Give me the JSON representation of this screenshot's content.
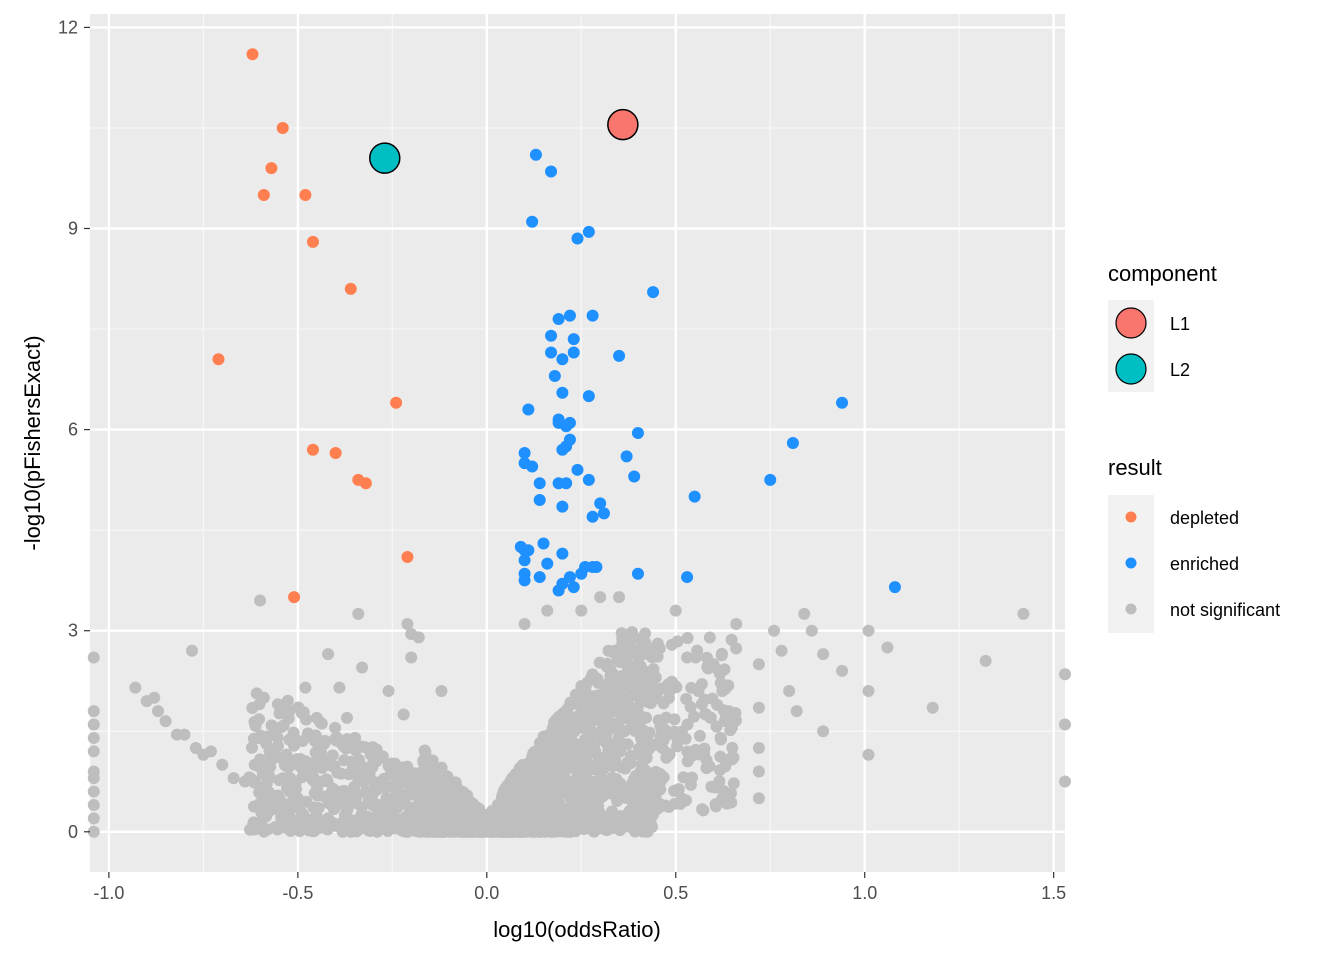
{
  "chart_data": {
    "type": "scatter",
    "xlabel": "log10(oddsRatio)",
    "ylabel": "-log10(pFishersExact)",
    "xlim": [
      -1.05,
      1.53
    ],
    "ylim": [
      -0.6,
      12.2
    ],
    "x_ticks": [
      -1.0,
      -0.5,
      0.0,
      0.5,
      1.0,
      1.5
    ],
    "x_tick_labels": [
      "-1.0",
      "-0.5",
      "0.0",
      "0.5",
      "1.0",
      "1.5"
    ],
    "y_ticks": [
      0,
      3,
      6,
      9,
      12
    ],
    "y_tick_labels": [
      "0",
      "3",
      "6",
      "9",
      "12"
    ],
    "grid": true,
    "legend_position": "right",
    "legend": {
      "component": {
        "title": "component",
        "items": [
          {
            "label": "L1",
            "color": "#F8766D"
          },
          {
            "label": "L2",
            "color": "#00BFC4"
          }
        ]
      },
      "result": {
        "title": "result",
        "items": [
          {
            "label": "depleted",
            "color": "#FF7F50"
          },
          {
            "label": "enriched",
            "color": "#1E90FF"
          },
          {
            "label": "not significant",
            "color": "#BEBEBE"
          }
        ]
      }
    },
    "series": [
      {
        "name": "depleted",
        "color": "#FF7F50",
        "points": [
          [
            -0.62,
            11.6
          ],
          [
            -0.54,
            10.5
          ],
          [
            -0.57,
            9.9
          ],
          [
            -0.59,
            9.5
          ],
          [
            -0.48,
            9.5
          ],
          [
            -0.46,
            8.8
          ],
          [
            -0.36,
            8.1
          ],
          [
            -0.71,
            7.05
          ],
          [
            -0.24,
            6.4
          ],
          [
            -0.46,
            5.7
          ],
          [
            -0.4,
            5.65
          ],
          [
            -0.34,
            5.25
          ],
          [
            -0.32,
            5.2
          ],
          [
            -0.21,
            4.1
          ],
          [
            -0.51,
            3.5
          ]
        ]
      },
      {
        "name": "enriched",
        "color": "#1E90FF",
        "points": [
          [
            0.13,
            10.1
          ],
          [
            0.17,
            9.85
          ],
          [
            0.12,
            9.1
          ],
          [
            0.27,
            8.95
          ],
          [
            0.24,
            8.85
          ],
          [
            0.44,
            8.05
          ],
          [
            0.19,
            7.65
          ],
          [
            0.22,
            7.7
          ],
          [
            0.28,
            7.7
          ],
          [
            0.17,
            7.4
          ],
          [
            0.23,
            7.35
          ],
          [
            0.17,
            7.15
          ],
          [
            0.35,
            7.1
          ],
          [
            0.23,
            7.15
          ],
          [
            0.2,
            7.05
          ],
          [
            0.18,
            6.8
          ],
          [
            0.2,
            6.55
          ],
          [
            0.27,
            6.5
          ],
          [
            0.11,
            6.3
          ],
          [
            0.19,
            6.15
          ],
          [
            0.22,
            6.1
          ],
          [
            0.21,
            6.05
          ],
          [
            0.19,
            6.1
          ],
          [
            0.4,
            5.95
          ],
          [
            0.22,
            5.85
          ],
          [
            0.1,
            5.65
          ],
          [
            0.21,
            5.75
          ],
          [
            0.2,
            5.7
          ],
          [
            0.1,
            5.5
          ],
          [
            0.12,
            5.45
          ],
          [
            0.37,
            5.6
          ],
          [
            0.24,
            5.4
          ],
          [
            0.27,
            5.25
          ],
          [
            0.39,
            5.3
          ],
          [
            0.14,
            5.2
          ],
          [
            0.19,
            5.2
          ],
          [
            0.21,
            5.2
          ],
          [
            0.3,
            4.9
          ],
          [
            0.14,
            4.95
          ],
          [
            0.2,
            4.85
          ],
          [
            0.31,
            4.75
          ],
          [
            0.28,
            4.7
          ],
          [
            0.55,
            5.0
          ],
          [
            0.09,
            4.25
          ],
          [
            0.15,
            4.3
          ],
          [
            0.1,
            4.2
          ],
          [
            0.11,
            4.2
          ],
          [
            0.2,
            4.15
          ],
          [
            0.1,
            4.05
          ],
          [
            0.16,
            4.0
          ],
          [
            0.26,
            3.95
          ],
          [
            0.28,
            3.95
          ],
          [
            0.29,
            3.95
          ],
          [
            0.1,
            3.85
          ],
          [
            0.14,
            3.8
          ],
          [
            0.25,
            3.85
          ],
          [
            0.22,
            3.8
          ],
          [
            0.1,
            3.75
          ],
          [
            0.2,
            3.7
          ],
          [
            0.23,
            3.65
          ],
          [
            0.4,
            3.85
          ],
          [
            0.53,
            3.8
          ],
          [
            0.19,
            3.6
          ],
          [
            0.75,
            5.25
          ],
          [
            0.81,
            5.8
          ],
          [
            0.94,
            6.4
          ],
          [
            1.08,
            3.65
          ]
        ]
      },
      {
        "name": "component",
        "color": "#000000",
        "points": [
          {
            "label": "L1",
            "x": 0.36,
            "y": 10.55,
            "color": "#F8766D"
          },
          {
            "label": "L2",
            "x": -0.27,
            "y": 10.05,
            "color": "#00BFC4"
          }
        ]
      }
    ],
    "background_cloud": {
      "name": "not significant",
      "color": "#BEBEBE",
      "outliers": [
        [
          -1.04,
          2.6
        ],
        [
          -1.04,
          1.8
        ],
        [
          -1.04,
          1.6
        ],
        [
          -1.04,
          1.4
        ],
        [
          -1.04,
          1.2
        ],
        [
          -1.04,
          0.9
        ],
        [
          -1.04,
          0.8
        ],
        [
          -1.04,
          0.6
        ],
        [
          -1.04,
          0.4
        ],
        [
          -1.04,
          0.2
        ],
        [
          -1.04,
          0.0
        ],
        [
          -0.93,
          2.15
        ],
        [
          -0.9,
          1.95
        ],
        [
          -0.88,
          2.0
        ],
        [
          -0.87,
          1.8
        ],
        [
          -0.85,
          1.65
        ],
        [
          -0.82,
          1.45
        ],
        [
          -0.8,
          1.45
        ],
        [
          -0.78,
          2.7
        ],
        [
          -0.77,
          1.25
        ],
        [
          -0.75,
          1.15
        ],
        [
          -0.73,
          1.2
        ],
        [
          -0.7,
          1.0
        ],
        [
          -0.67,
          0.8
        ],
        [
          -0.64,
          0.75
        ],
        [
          -0.6,
          0.6
        ],
        [
          -0.58,
          0.6
        ],
        [
          -0.6,
          3.45
        ],
        [
          -0.6,
          1.4
        ],
        [
          -0.59,
          2.0
        ],
        [
          -0.56,
          1.15
        ],
        [
          -0.52,
          0.8
        ],
        [
          -0.5,
          0.5
        ],
        [
          -0.48,
          2.15
        ],
        [
          -0.45,
          1.7
        ],
        [
          -0.44,
          1.3
        ],
        [
          -0.42,
          2.65
        ],
        [
          -0.39,
          2.15
        ],
        [
          -0.37,
          1.7
        ],
        [
          -0.34,
          3.25
        ],
        [
          -0.33,
          2.45
        ],
        [
          -0.26,
          2.1
        ],
        [
          -0.22,
          1.75
        ],
        [
          -0.21,
          3.1
        ],
        [
          -0.2,
          2.95
        ],
        [
          -0.2,
          2.6
        ],
        [
          -0.18,
          2.9
        ],
        [
          -0.12,
          2.1
        ],
        [
          -0.42,
          0.2
        ],
        [
          -0.38,
          0.15
        ],
        [
          -0.36,
          0.0
        ],
        [
          -0.29,
          0.0
        ],
        [
          0.56,
          2.1
        ],
        [
          0.6,
          2.5
        ],
        [
          0.64,
          1.8
        ],
        [
          0.66,
          3.1
        ],
        [
          0.72,
          2.5
        ],
        [
          0.72,
          1.85
        ],
        [
          0.72,
          1.25
        ],
        [
          0.72,
          0.9
        ],
        [
          0.72,
          0.5
        ],
        [
          0.76,
          3.0
        ],
        [
          0.78,
          2.7
        ],
        [
          0.8,
          2.1
        ],
        [
          0.82,
          1.8
        ],
        [
          0.84,
          3.25
        ],
        [
          0.86,
          3.0
        ],
        [
          0.89,
          2.65
        ],
        [
          0.89,
          1.5
        ],
        [
          0.94,
          2.4
        ],
        [
          1.01,
          3.0
        ],
        [
          1.01,
          2.1
        ],
        [
          1.01,
          1.15
        ],
        [
          1.06,
          2.75
        ],
        [
          1.18,
          1.85
        ],
        [
          1.32,
          2.55
        ],
        [
          1.42,
          3.25
        ],
        [
          1.53,
          2.35
        ],
        [
          1.53,
          1.6
        ],
        [
          1.53,
          0.75
        ],
        [
          0.54,
          0.7
        ],
        [
          0.46,
          0.75
        ],
        [
          0.4,
          0.5
        ],
        [
          0.32,
          0.2
        ],
        [
          0.24,
          0.1
        ],
        [
          0.5,
          3.3
        ],
        [
          0.53,
          2.6
        ],
        [
          0.48,
          2.2
        ],
        [
          0.35,
          3.5
        ],
        [
          0.3,
          3.5
        ],
        [
          0.25,
          3.3
        ],
        [
          0.16,
          3.3
        ],
        [
          0.1,
          3.1
        ]
      ]
    }
  }
}
